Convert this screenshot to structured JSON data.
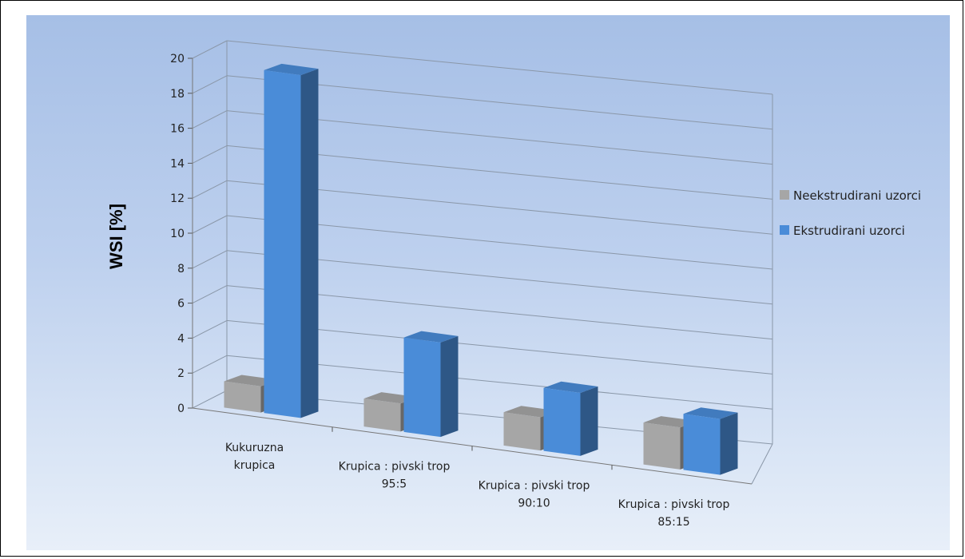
{
  "chart_data": {
    "type": "bar",
    "categories": [
      [
        "Kukuruzna",
        "krupica"
      ],
      [
        "Krupica : pivski trop",
        "95:5"
      ],
      [
        "Krupica : pivski trop",
        "90:10"
      ],
      [
        "Krupica : pivski trop",
        "85:15"
      ]
    ],
    "series": [
      {
        "name": "Neekstrudirani uzorci",
        "values": [
          1.5,
          1.6,
          1.9,
          2.4
        ],
        "color": "#a6a6a6"
      },
      {
        "name": "Ekstrudirani uzorci",
        "values": [
          19.6,
          5.4,
          3.6,
          3.2
        ],
        "color": "#4a8cd8"
      }
    ],
    "ylabel": "WSI [%]",
    "ylim": [
      0,
      20
    ],
    "yticks": [
      0,
      2,
      4,
      6,
      8,
      10,
      12,
      14,
      16,
      18,
      20
    ],
    "grid": true,
    "legend_position": "right",
    "three_d": true
  }
}
